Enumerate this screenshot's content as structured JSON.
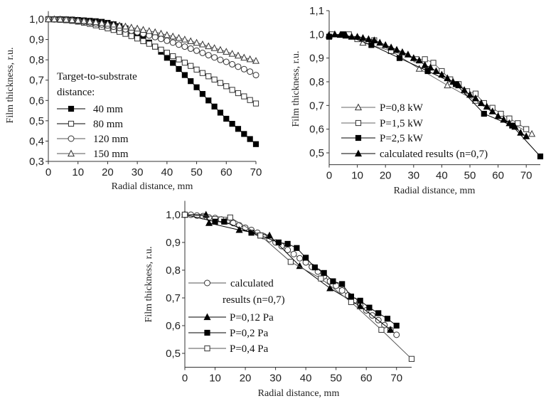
{
  "chart_data": [
    {
      "type": "scatter",
      "xlabel": "Radial distance, mm",
      "ylabel": "Film thickness, r.u.",
      "xlim": [
        0,
        70
      ],
      "ylim": [
        0.3,
        1.04
      ],
      "x_ticks": [
        0,
        10,
        20,
        30,
        40,
        50,
        60,
        70
      ],
      "x_tick_labels": [
        "0",
        "10",
        "20",
        "30",
        "40",
        "50",
        "60",
        "70"
      ],
      "y_ticks": [
        0.3,
        0.4,
        0.5,
        0.6,
        0.7,
        0.8,
        0.9,
        1.0
      ],
      "y_tick_labels": [
        "0,3",
        "0,4",
        "0,5",
        "0,6",
        "0,7",
        "0,8",
        "0,9",
        "1,0"
      ],
      "grid": false,
      "legend_title": [
        "Target-to-substrate",
        "distance:"
      ],
      "legend_position": "center-left",
      "x": [
        0,
        2,
        4,
        6,
        8,
        10,
        12,
        14,
        16,
        18,
        20,
        22,
        24,
        26,
        28,
        30,
        32,
        34,
        36,
        38,
        40,
        42,
        44,
        46,
        48,
        50,
        52,
        54,
        56,
        58,
        60,
        62,
        64,
        66,
        68,
        70
      ],
      "series": [
        {
          "name": "40 mm",
          "marker": "square-filled",
          "color": "#000000",
          "values": [
            1.0,
            1.0,
            1.0,
            0.999,
            0.998,
            0.996,
            0.994,
            0.992,
            0.99,
            0.987,
            0.982,
            0.975,
            0.966,
            0.955,
            0.94,
            0.925,
            0.908,
            0.885,
            0.865,
            0.84,
            0.81,
            0.785,
            0.755,
            0.725,
            0.695,
            0.665,
            0.632,
            0.6,
            0.57,
            0.54,
            0.51,
            0.485,
            0.46,
            0.435,
            0.41,
            0.385
          ]
        },
        {
          "name": "80 mm",
          "marker": "square-open",
          "color": "#000000",
          "values": [
            1.0,
            0.999,
            0.997,
            0.995,
            0.992,
            0.988,
            0.983,
            0.977,
            0.97,
            0.963,
            0.955,
            0.947,
            0.938,
            0.928,
            0.917,
            0.905,
            0.892,
            0.879,
            0.865,
            0.85,
            0.835,
            0.818,
            0.802,
            0.786,
            0.77,
            0.752,
            0.735,
            0.719,
            0.703,
            0.686,
            0.67,
            0.652,
            0.636,
            0.62,
            0.602,
            0.585
          ]
        },
        {
          "name": "120 mm",
          "marker": "circle-open",
          "color": "#555555",
          "values": [
            1.0,
            0.999,
            0.998,
            0.996,
            0.994,
            0.991,
            0.988,
            0.984,
            0.979,
            0.974,
            0.969,
            0.963,
            0.957,
            0.95,
            0.943,
            0.936,
            0.928,
            0.92,
            0.912,
            0.903,
            0.894,
            0.885,
            0.875,
            0.865,
            0.855,
            0.845,
            0.834,
            0.823,
            0.812,
            0.8,
            0.79,
            0.778,
            0.766,
            0.754,
            0.742,
            0.725
          ]
        },
        {
          "name": "150 mm",
          "marker": "triangle-open",
          "color": "#555555",
          "values": [
            1.0,
            1.0,
            0.999,
            0.998,
            0.996,
            0.994,
            0.992,
            0.989,
            0.986,
            0.982,
            0.978,
            0.974,
            0.969,
            0.964,
            0.959,
            0.954,
            0.948,
            0.942,
            0.936,
            0.929,
            0.922,
            0.915,
            0.908,
            0.9,
            0.892,
            0.884,
            0.876,
            0.867,
            0.858,
            0.849,
            0.84,
            0.83,
            0.821,
            0.811,
            0.803,
            0.795
          ]
        }
      ]
    },
    {
      "type": "scatter",
      "xlabel": "Radial distance, mm",
      "ylabel": "Film thickness, r.u.",
      "xlim": [
        0,
        75
      ],
      "ylim": [
        0.45,
        1.1
      ],
      "x_ticks": [
        0,
        10,
        20,
        30,
        40,
        50,
        60,
        70
      ],
      "x_tick_labels": [
        "0",
        "10",
        "20",
        "30",
        "40",
        "50",
        "60",
        "70"
      ],
      "y_ticks": [
        0.5,
        0.6,
        0.7,
        0.8,
        0.9,
        1.0,
        1.1
      ],
      "y_tick_labels": [
        "0,5",
        "0,6",
        "0,7",
        "0,8",
        "0,9",
        "1,0",
        "1,1"
      ],
      "grid": false,
      "legend_position": "bottom-left",
      "series": [
        {
          "name": "P=0,8 kW",
          "marker": "triangle-open",
          "color": "#666666",
          "points": [
            [
              0,
              1.0
            ],
            [
              2,
              1.0
            ],
            [
              6,
              0.995
            ],
            [
              12,
              0.965
            ],
            [
              22,
              0.93
            ],
            [
              32,
              0.855
            ],
            [
              42,
              0.785
            ],
            [
              52,
              0.72
            ],
            [
              62,
              0.64
            ],
            [
              72,
              0.58
            ]
          ]
        },
        {
          "name": "P=1,5 kW",
          "marker": "square-open",
          "color": "#666666",
          "points": [
            [
              1,
              1.0
            ],
            [
              5,
              1.0
            ],
            [
              7,
              1.0
            ],
            [
              10,
              0.98
            ],
            [
              16,
              0.975
            ],
            [
              22,
              0.93
            ],
            [
              31,
              0.895
            ],
            [
              34,
              0.895
            ],
            [
              37,
              0.88
            ],
            [
              40,
              0.845
            ],
            [
              43,
              0.81
            ],
            [
              46,
              0.79
            ],
            [
              49,
              0.76
            ],
            [
              52,
              0.75
            ],
            [
              55,
              0.71
            ],
            [
              58,
              0.69
            ],
            [
              61,
              0.665
            ],
            [
              64,
              0.645
            ],
            [
              67,
              0.625
            ],
            [
              70,
              0.6
            ]
          ]
        },
        {
          "name": "P=2,5 kW",
          "marker": "square-filled",
          "color": "#000000",
          "points": [
            [
              0,
              0.99
            ],
            [
              5,
              1.0
            ],
            [
              15,
              0.955
            ],
            [
              25,
              0.9
            ],
            [
              35,
              0.845
            ],
            [
              45,
              0.79
            ],
            [
              55,
              0.665
            ],
            [
              65,
              0.615
            ],
            [
              75,
              0.485
            ]
          ]
        },
        {
          "name": "calculated results (n=0,7)",
          "marker": "triangle-filled",
          "color": "#000000",
          "points": [
            [
              0,
              0.995
            ],
            [
              2,
              1.0
            ],
            [
              4,
              0.998
            ],
            [
              6,
              0.995
            ],
            [
              8,
              0.99
            ],
            [
              10,
              0.99
            ],
            [
              12,
              0.985
            ],
            [
              14,
              0.98
            ],
            [
              16,
              0.975
            ],
            [
              18,
              0.965
            ],
            [
              20,
              0.955
            ],
            [
              22,
              0.945
            ],
            [
              24,
              0.935
            ],
            [
              26,
              0.925
            ],
            [
              28,
              0.915
            ],
            [
              30,
              0.9
            ],
            [
              32,
              0.89
            ],
            [
              34,
              0.87
            ],
            [
              36,
              0.86
            ],
            [
              38,
              0.845
            ],
            [
              40,
              0.83
            ],
            [
              42,
              0.815
            ],
            [
              44,
              0.8
            ],
            [
              46,
              0.785
            ],
            [
              48,
              0.765
            ],
            [
              50,
              0.745
            ],
            [
              52,
              0.73
            ],
            [
              54,
              0.71
            ],
            [
              56,
              0.695
            ],
            [
              58,
              0.675
            ],
            [
              60,
              0.655
            ],
            [
              62,
              0.64
            ],
            [
              64,
              0.625
            ],
            [
              66,
              0.61
            ],
            [
              68,
              0.585
            ],
            [
              70,
              0.57
            ]
          ]
        }
      ]
    },
    {
      "type": "scatter",
      "xlabel": "Radial distance, mm",
      "ylabel": "Film thickness, r.u.",
      "xlim": [
        0,
        75
      ],
      "ylim": [
        0.45,
        1.05
      ],
      "x_ticks": [
        0,
        10,
        20,
        30,
        40,
        50,
        60,
        70
      ],
      "x_tick_labels": [
        "0",
        "10",
        "20",
        "30",
        "40",
        "50",
        "60",
        "70"
      ],
      "y_ticks": [
        0.5,
        0.6,
        0.7,
        0.8,
        0.9,
        1.0
      ],
      "y_tick_labels": [
        "0,5",
        "0,6",
        "0,7",
        "0,8",
        "0,9",
        "1,0"
      ],
      "grid": false,
      "legend_position": "bottom-left",
      "series": [
        {
          "name": "calculated results (n=0,7)",
          "legend_lines": [
            "calculated",
            "results (n=0,7)"
          ],
          "marker": "circle-open",
          "color": "#555555",
          "points": [
            [
              0,
              1.0
            ],
            [
              2,
              1.0
            ],
            [
              4,
              0.997
            ],
            [
              6,
              0.995
            ],
            [
              8,
              0.99
            ],
            [
              10,
              0.988
            ],
            [
              12,
              0.983
            ],
            [
              14,
              0.977
            ],
            [
              16,
              0.97
            ],
            [
              18,
              0.962
            ],
            [
              20,
              0.953
            ],
            [
              22,
              0.945
            ],
            [
              24,
              0.935
            ],
            [
              26,
              0.923
            ],
            [
              28,
              0.912
            ],
            [
              30,
              0.9
            ],
            [
              32,
              0.887
            ],
            [
              34,
              0.873
            ],
            [
              36,
              0.858
            ],
            [
              38,
              0.843
            ],
            [
              40,
              0.828
            ],
            [
              42,
              0.812
            ],
            [
              44,
              0.795
            ],
            [
              46,
              0.778
            ],
            [
              48,
              0.76
            ],
            [
              50,
              0.744
            ],
            [
              52,
              0.727
            ],
            [
              54,
              0.709
            ],
            [
              56,
              0.69
            ],
            [
              58,
              0.673
            ],
            [
              60,
              0.655
            ],
            [
              62,
              0.637
            ],
            [
              64,
              0.62
            ],
            [
              66,
              0.602
            ],
            [
              68,
              0.585
            ],
            [
              70,
              0.567
            ]
          ]
        },
        {
          "name": "P=0,12 Pa",
          "marker": "triangle-filled",
          "color": "#000000",
          "points": [
            [
              0,
              1.0
            ],
            [
              7,
              1.0
            ],
            [
              8,
              0.97
            ],
            [
              18,
              0.945
            ],
            [
              28,
              0.925
            ],
            [
              38,
              0.815
            ],
            [
              48,
              0.735
            ],
            [
              58,
              0.67
            ],
            [
              68,
              0.585
            ]
          ]
        },
        {
          "name": "P=0,2 Pa",
          "marker": "square-filled",
          "color": "#000000",
          "points": [
            [
              0,
              1.0
            ],
            [
              10,
              0.975
            ],
            [
              13,
              0.975
            ],
            [
              22,
              0.935
            ],
            [
              25,
              0.925
            ],
            [
              31,
              0.9
            ],
            [
              34,
              0.895
            ],
            [
              37,
              0.88
            ],
            [
              40,
              0.845
            ],
            [
              43,
              0.81
            ],
            [
              46,
              0.79
            ],
            [
              49,
              0.76
            ],
            [
              52,
              0.75
            ],
            [
              55,
              0.705
            ],
            [
              58,
              0.69
            ],
            [
              61,
              0.665
            ],
            [
              64,
              0.645
            ],
            [
              67,
              0.625
            ],
            [
              70,
              0.6
            ]
          ]
        },
        {
          "name": "P=0,4 Pa",
          "marker": "square-open",
          "color": "#555555",
          "points": [
            [
              0,
              1.0
            ],
            [
              15,
              0.99
            ],
            [
              25,
              0.925
            ],
            [
              35,
              0.83
            ],
            [
              45,
              0.77
            ],
            [
              55,
              0.685
            ],
            [
              65,
              0.585
            ],
            [
              75,
              0.48
            ]
          ]
        }
      ]
    }
  ]
}
